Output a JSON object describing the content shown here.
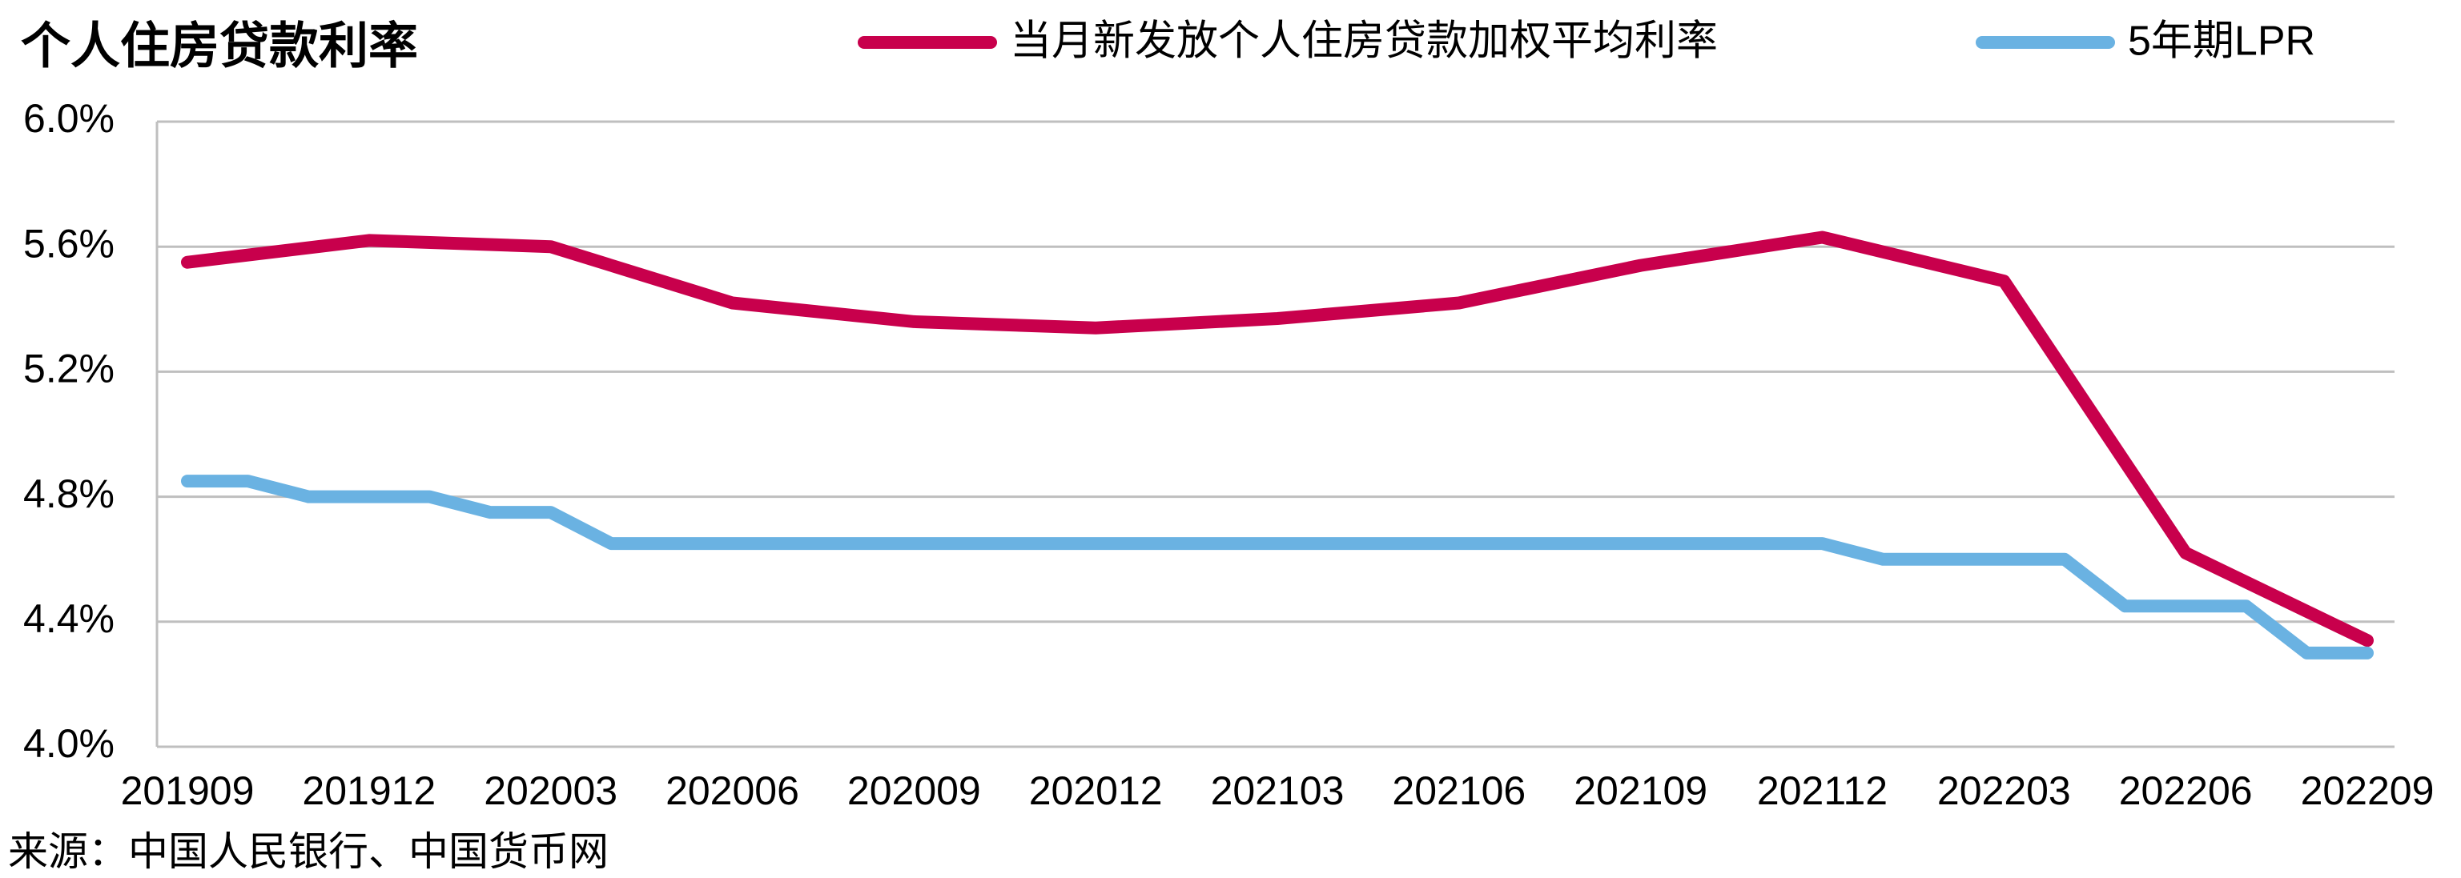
{
  "chart_data": {
    "type": "line",
    "title": "个人住房贷款利率",
    "categories": [
      "201909",
      null,
      null,
      "201912",
      null,
      null,
      "202003",
      null,
      null,
      "202006",
      null,
      null,
      "202009",
      null,
      null,
      "202012",
      null,
      null,
      "202103",
      null,
      null,
      "202106",
      null,
      null,
      "202109",
      null,
      null,
      "202112",
      null,
      null,
      "202203",
      null,
      null,
      "202206",
      null,
      null,
      "202209"
    ],
    "series": [
      {
        "name": "当月新发放个人住房贷款加权平均利率",
        "color": "#c8004c",
        "x": [
          "201909",
          "201912",
          "202003",
          "202006",
          "202009",
          "202012",
          "202103",
          "202106",
          "202109",
          "202112",
          "202203",
          "202206",
          "202209"
        ],
        "values": [
          5.55,
          5.62,
          5.6,
          5.42,
          5.36,
          5.34,
          5.37,
          5.42,
          5.54,
          5.63,
          5.49,
          4.62,
          4.34
        ]
      },
      {
        "name": "5年期LPR",
        "color": "#6ab2e2",
        "values": [
          4.85,
          4.85,
          4.8,
          4.8,
          4.8,
          4.75,
          4.75,
          4.65,
          4.65,
          4.65,
          4.65,
          4.65,
          4.65,
          4.65,
          4.65,
          4.65,
          4.65,
          4.65,
          4.65,
          4.65,
          4.65,
          4.65,
          4.65,
          4.65,
          4.65,
          4.65,
          4.65,
          4.65,
          4.6,
          4.6,
          4.6,
          4.6,
          4.45,
          4.45,
          4.45,
          4.3,
          4.3
        ]
      }
    ],
    "ylim": [
      4.0,
      6.0
    ],
    "yticks": [
      {
        "value": 4.0,
        "label": "4.0%"
      },
      {
        "value": 4.4,
        "label": "4.4%"
      },
      {
        "value": 4.8,
        "label": "4.8%"
      },
      {
        "value": 5.2,
        "label": "5.2%"
      },
      {
        "value": 5.6,
        "label": "5.6%"
      },
      {
        "value": 6.0,
        "label": "6.0%"
      }
    ],
    "grid": true,
    "legend": "top",
    "source": "来源：中国人民银行、中国货币网"
  }
}
